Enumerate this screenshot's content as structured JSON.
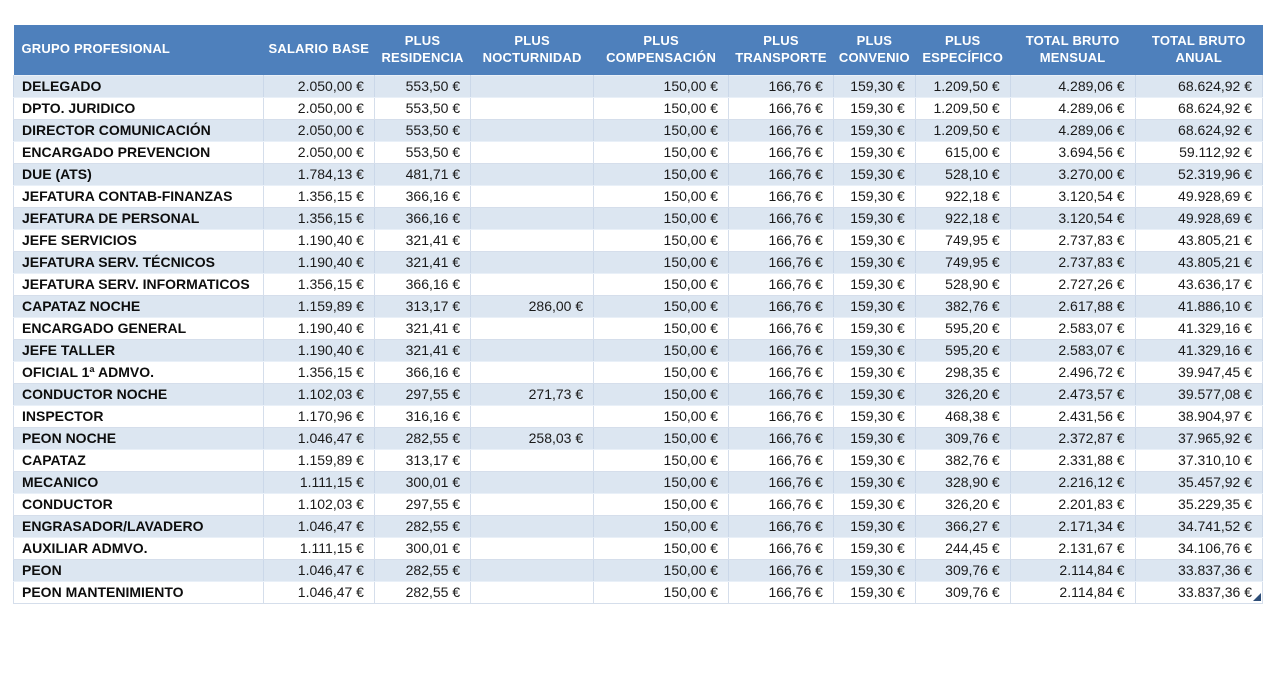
{
  "colors": {
    "header_bg": "#4E80BC",
    "header_text": "#FFFFFF",
    "row_alt_bg": "#DCE6F1",
    "row_bg": "#FFFFFF",
    "grid_line": "#D5DEEB",
    "text": "#1A1A1A",
    "corner_marker": "#2E4E78"
  },
  "table": {
    "columns": [
      "GRUPO PROFESIONAL",
      "SALARIO BASE",
      "PLUS RESIDENCIA",
      "PLUS NOCTURNIDAD",
      "PLUS COMPENSACIÓN",
      "PLUS TRANSPORTE",
      "PLUS CONVENIO",
      "PLUS ESPECÍFICO",
      "TOTAL BRUTO MENSUAL",
      "TOTAL BRUTO ANUAL"
    ],
    "rows": [
      [
        "DELEGADO",
        "2.050,00 €",
        "553,50 €",
        "",
        "150,00 €",
        "166,76 €",
        "159,30 €",
        "1.209,50 €",
        "4.289,06 €",
        "68.624,92 €"
      ],
      [
        "DPTO. JURIDICO",
        "2.050,00 €",
        "553,50 €",
        "",
        "150,00 €",
        "166,76 €",
        "159,30 €",
        "1.209,50 €",
        "4.289,06 €",
        "68.624,92 €"
      ],
      [
        "DIRECTOR COMUNICACIÓN",
        "2.050,00 €",
        "553,50 €",
        "",
        "150,00 €",
        "166,76 €",
        "159,30 €",
        "1.209,50 €",
        "4.289,06 €",
        "68.624,92 €"
      ],
      [
        "ENCARGADO PREVENCION",
        "2.050,00 €",
        "553,50 €",
        "",
        "150,00 €",
        "166,76 €",
        "159,30 €",
        "615,00 €",
        "3.694,56 €",
        "59.112,92 €"
      ],
      [
        "DUE (ATS)",
        "1.784,13 €",
        "481,71 €",
        "",
        "150,00 €",
        "166,76 €",
        "159,30 €",
        "528,10 €",
        "3.270,00 €",
        "52.319,96 €"
      ],
      [
        "JEFATURA CONTAB-FINANZAS",
        "1.356,15 €",
        "366,16 €",
        "",
        "150,00 €",
        "166,76 €",
        "159,30 €",
        "922,18 €",
        "3.120,54 €",
        "49.928,69 €"
      ],
      [
        "JEFATURA DE PERSONAL",
        "1.356,15 €",
        "366,16 €",
        "",
        "150,00 €",
        "166,76 €",
        "159,30 €",
        "922,18 €",
        "3.120,54 €",
        "49.928,69 €"
      ],
      [
        "JEFE SERVICIOS",
        "1.190,40 €",
        "321,41 €",
        "",
        "150,00 €",
        "166,76 €",
        "159,30 €",
        "749,95 €",
        "2.737,83 €",
        "43.805,21 €"
      ],
      [
        "JEFATURA SERV. TÉCNICOS",
        "1.190,40 €",
        "321,41 €",
        "",
        "150,00 €",
        "166,76 €",
        "159,30 €",
        "749,95 €",
        "2.737,83 €",
        "43.805,21 €"
      ],
      [
        "JEFATURA SERV. INFORMATICOS",
        "1.356,15 €",
        "366,16 €",
        "",
        "150,00 €",
        "166,76 €",
        "159,30 €",
        "528,90 €",
        "2.727,26 €",
        "43.636,17 €"
      ],
      [
        "CAPATAZ NOCHE",
        "1.159,89 €",
        "313,17 €",
        "286,00 €",
        "150,00 €",
        "166,76 €",
        "159,30 €",
        "382,76 €",
        "2.617,88 €",
        "41.886,10 €"
      ],
      [
        "ENCARGADO GENERAL",
        "1.190,40 €",
        "321,41 €",
        "",
        "150,00 €",
        "166,76 €",
        "159,30 €",
        "595,20 €",
        "2.583,07 €",
        "41.329,16 €"
      ],
      [
        "JEFE TALLER",
        "1.190,40 €",
        "321,41 €",
        "",
        "150,00 €",
        "166,76 €",
        "159,30 €",
        "595,20 €",
        "2.583,07 €",
        "41.329,16 €"
      ],
      [
        "OFICIAL 1ª ADMVO.",
        "1.356,15 €",
        "366,16 €",
        "",
        "150,00 €",
        "166,76 €",
        "159,30 €",
        "298,35 €",
        "2.496,72 €",
        "39.947,45 €"
      ],
      [
        "CONDUCTOR NOCHE",
        "1.102,03 €",
        "297,55 €",
        "271,73 €",
        "150,00 €",
        "166,76 €",
        "159,30 €",
        "326,20 €",
        "2.473,57 €",
        "39.577,08 €"
      ],
      [
        "INSPECTOR",
        "1.170,96 €",
        "316,16 €",
        "",
        "150,00 €",
        "166,76 €",
        "159,30 €",
        "468,38 €",
        "2.431,56 €",
        "38.904,97 €"
      ],
      [
        "PEON NOCHE",
        "1.046,47 €",
        "282,55 €",
        "258,03 €",
        "150,00 €",
        "166,76 €",
        "159,30 €",
        "309,76 €",
        "2.372,87 €",
        "37.965,92 €"
      ],
      [
        "CAPATAZ",
        "1.159,89 €",
        "313,17 €",
        "",
        "150,00 €",
        "166,76 €",
        "159,30 €",
        "382,76 €",
        "2.331,88 €",
        "37.310,10 €"
      ],
      [
        "MECANICO",
        "1.111,15 €",
        "300,01 €",
        "",
        "150,00 €",
        "166,76 €",
        "159,30 €",
        "328,90 €",
        "2.216,12 €",
        "35.457,92 €"
      ],
      [
        "CONDUCTOR",
        "1.102,03 €",
        "297,55 €",
        "",
        "150,00 €",
        "166,76 €",
        "159,30 €",
        "326,20 €",
        "2.201,83 €",
        "35.229,35 €"
      ],
      [
        "ENGRASADOR/LAVADERO",
        "1.046,47 €",
        "282,55 €",
        "",
        "150,00 €",
        "166,76 €",
        "159,30 €",
        "366,27 €",
        "2.171,34 €",
        "34.741,52 €"
      ],
      [
        "AUXILIAR ADMVO.",
        "1.111,15 €",
        "300,01 €",
        "",
        "150,00 €",
        "166,76 €",
        "159,30 €",
        "244,45 €",
        "2.131,67 €",
        "34.106,76 €"
      ],
      [
        "PEON",
        "1.046,47 €",
        "282,55 €",
        "",
        "150,00 €",
        "166,76 €",
        "159,30 €",
        "309,76 €",
        "2.114,84 €",
        "33.837,36 €"
      ],
      [
        "PEON MANTENIMIENTO",
        "1.046,47 €",
        "282,55 €",
        "",
        "150,00 €",
        "166,76 €",
        "159,30 €",
        "309,76 €",
        "2.114,84 €",
        "33.837,36 €"
      ]
    ]
  }
}
